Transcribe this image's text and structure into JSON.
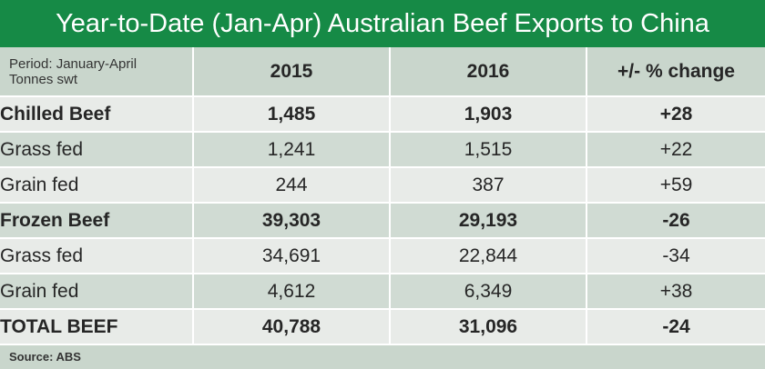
{
  "title": "Year-to-Date (Jan-Apr) Australian Beef Exports to China",
  "header": {
    "period_line1": "Period: January-April",
    "period_line2": "Tonnes swt",
    "col_2015": "2015",
    "col_2016": "2016",
    "col_change": "+/- % change"
  },
  "source": "Source: ABS",
  "colors": {
    "title_bg": "#168a46",
    "row_light": "#e8ebe8",
    "row_dark": "#d0dbd3",
    "header_bg": "#c9d6cc"
  },
  "chart_data": {
    "type": "table",
    "title": "Year-to-Date (Jan-Apr) Australian Beef Exports to China",
    "columns": [
      "Period: January-April Tonnes swt",
      "2015",
      "2016",
      "+/- % change"
    ],
    "rows": [
      {
        "label": "Chilled Beef",
        "y2015": "1,485",
        "y2016": "1,903",
        "change": "+28",
        "bold": true
      },
      {
        "label": "Grass fed",
        "y2015": "1,241",
        "y2016": "1,515",
        "change": "+22",
        "bold": false
      },
      {
        "label": "Grain fed",
        "y2015": "244",
        "y2016": "387",
        "change": "+59",
        "bold": false
      },
      {
        "label": "Frozen Beef",
        "y2015": "39,303",
        "y2016": "29,193",
        "change": "-26",
        "bold": true
      },
      {
        "label": "Grass fed",
        "y2015": "34,691",
        "y2016": "22,844",
        "change": "-34",
        "bold": false
      },
      {
        "label": "Grain fed",
        "y2015": "4,612",
        "y2016": "6,349",
        "change": "+38",
        "bold": false
      },
      {
        "label": "TOTAL BEEF",
        "y2015": "40,788",
        "y2016": "31,096",
        "change": "-24",
        "bold": true
      }
    ]
  }
}
